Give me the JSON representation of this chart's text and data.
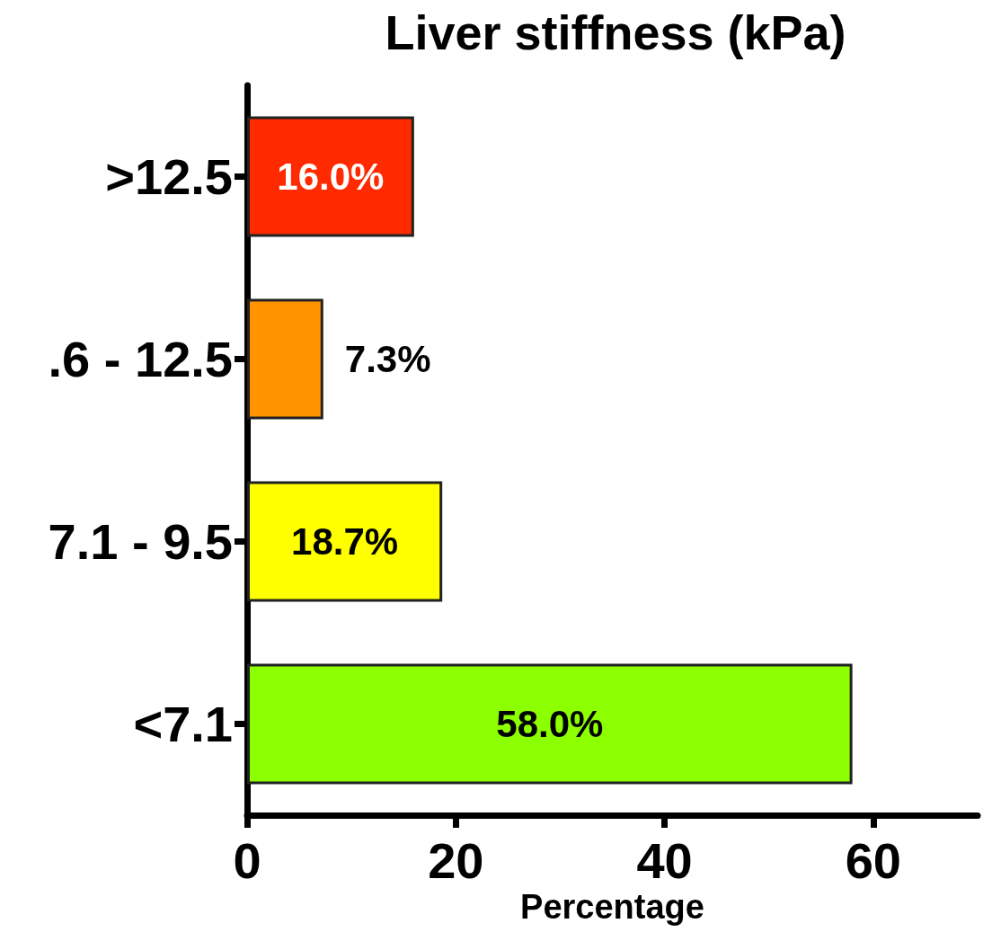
{
  "chart_data": {
    "type": "bar",
    "orientation": "horizontal",
    "title": "Liver stiffness (kPa)",
    "xlabel": "Percentage",
    "categories": [
      ">12.5",
      ".6 - 12.5",
      "7.1 - 9.5",
      "<7.1"
    ],
    "values": [
      16.0,
      7.3,
      18.7,
      58.0
    ],
    "colors": [
      "#ff2a00",
      "#ff9400",
      "#ffff00",
      "#8cff00"
    ],
    "value_labels": [
      "16.0%",
      "7.3%",
      "18.7%",
      "58.0%"
    ],
    "xlim": [
      0,
      70
    ],
    "xticks": [
      0,
      20,
      40,
      60
    ],
    "grid": false
  }
}
